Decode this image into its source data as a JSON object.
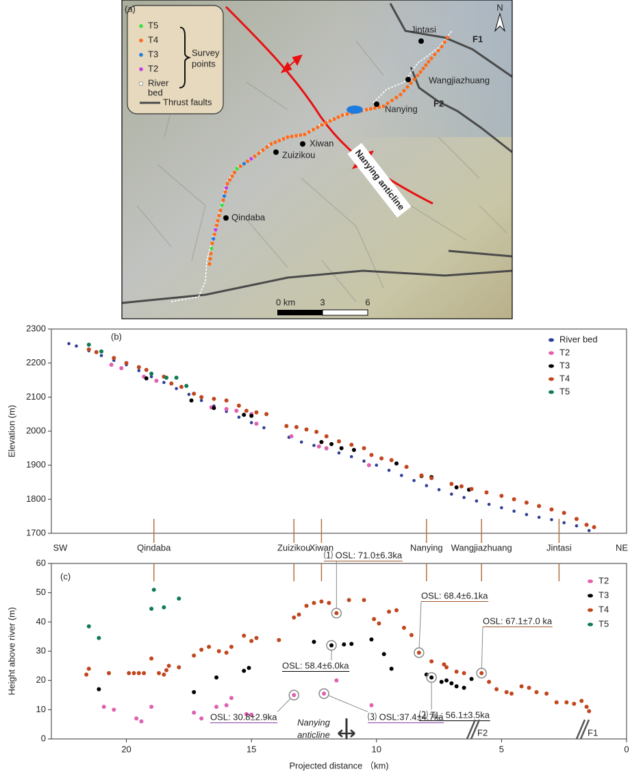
{
  "map": {
    "panel_label": "(a)",
    "legend": {
      "items": [
        "T5",
        "T4",
        "T3",
        "T2",
        [
          "River",
          "bed"
        ]
      ],
      "colors": [
        "#3ce03c",
        "#ff6a1a",
        "#1e7be0",
        "#c838e8",
        "#ffffff"
      ],
      "group_label": [
        "Survey",
        "points"
      ],
      "fault_label": "Thrust faults"
    },
    "places": [
      "Jintasi",
      "Wangjiazhuang",
      "Nanying",
      "Xiwan",
      "Zuizikou",
      "Qindaba"
    ],
    "faults": [
      "F1",
      "F2"
    ],
    "north": "N",
    "anticline": "Nanying anticline",
    "scale": [
      "0 km",
      "3",
      "6"
    ]
  },
  "chart_data": [
    {
      "type": "scatter",
      "panel_label": "(b)",
      "y_label": "Elevation (m)",
      "xlim": [
        23,
        0
      ],
      "ylim": [
        1700,
        2300
      ],
      "yticks": [
        1700,
        1800,
        1900,
        2000,
        2100,
        2200,
        2300
      ],
      "legend": "upper right",
      "ends": [
        "SW",
        "NE"
      ],
      "locations": {
        "names": [
          "Qindaba",
          "Zuizikou",
          "Xiwan",
          "Nanying",
          "Wangjiazhuang",
          "Jintasi"
        ],
        "x": [
          18.9,
          13.3,
          12.2,
          8.0,
          5.8,
          2.7
        ],
        "color": "#b5703c"
      },
      "series": [
        {
          "name": "River bed",
          "color": "#2e3e96",
          "x": [
            22.3,
            22,
            21.5,
            21,
            20.5,
            20,
            19.5,
            19,
            18.5,
            18,
            17.5,
            17,
            16.5,
            16,
            15.5,
            15,
            14.5,
            13.5,
            13,
            12.5,
            12,
            11.5,
            11,
            10.5,
            10,
            9.5,
            9,
            8.5,
            8,
            7.5,
            7,
            6.5,
            6,
            5.5,
            5,
            4.5,
            4,
            3.5,
            3,
            2.5,
            2,
            1.5
          ],
          "values": [
            2257,
            2250,
            2236,
            2222,
            2208,
            2195,
            2178,
            2160,
            2143,
            2125,
            2108,
            2090,
            2074,
            2058,
            2041,
            2025,
            2010,
            1982,
            1968,
            1958,
            1948,
            1936,
            1925,
            1912,
            1900,
            1885,
            1870,
            1855,
            1840,
            1828,
            1815,
            1805,
            1795,
            1785,
            1775,
            1765,
            1755,
            1747,
            1740,
            1731,
            1722,
            1708
          ]
        },
        {
          "name": "T2",
          "color": "#e060b0",
          "x": [
            20.6,
            20.2,
            19.3,
            18.8,
            16.6,
            16,
            15.6,
            15,
            14.8,
            13.4,
            12.3,
            12,
            10.3
          ],
          "values": [
            2195,
            2185,
            2160,
            2148,
            2070,
            2065,
            2060,
            2050,
            2022,
            1985,
            1955,
            1950,
            1900
          ]
        },
        {
          "name": "T3",
          "color": "#000000",
          "x": [
            19.2,
            17.4,
            16.5,
            15.3,
            15,
            12.2,
            11.8,
            11.4,
            10.9,
            9.2,
            8.2,
            7.8,
            6.8,
            6.3
          ],
          "values": [
            2155,
            2090,
            2068,
            2048,
            2045,
            1968,
            1962,
            1950,
            1945,
            1905,
            1868,
            1865,
            1835,
            1828
          ]
        },
        {
          "name": "T4",
          "color": "#c0461e",
          "x": [
            21.5,
            21.2,
            20.5,
            20,
            19.5,
            19.2,
            18.5,
            18.2,
            17.8,
            17.3,
            17,
            16.5,
            16,
            15.5,
            15.2,
            14.8,
            14.4,
            13.6,
            13.2,
            12.8,
            12.4,
            12,
            11.5,
            11,
            10.5,
            10.2,
            9.8,
            9.4,
            8.8,
            8.2,
            7.8,
            7,
            6.6,
            6.2,
            5.6,
            5,
            4.5,
            4,
            3.5,
            3,
            2.5,
            2,
            1.6,
            1.3
          ],
          "values": [
            2240,
            2232,
            2215,
            2200,
            2188,
            2180,
            2160,
            2140,
            2130,
            2110,
            2100,
            2095,
            2090,
            2075,
            2060,
            2055,
            2050,
            2015,
            2012,
            2005,
            1998,
            1985,
            1970,
            1960,
            1950,
            1930,
            1920,
            1915,
            1895,
            1870,
            1862,
            1845,
            1838,
            1830,
            1820,
            1810,
            1800,
            1790,
            1780,
            1770,
            1760,
            1742,
            1725,
            1718
          ]
        },
        {
          "name": "T5",
          "color": "#0f7a5a",
          "x": [
            21.5,
            21.0,
            19.0,
            18.4,
            18.0,
            17.6
          ],
          "values": [
            2254,
            2234,
            2169,
            2157,
            2157,
            2133
          ]
        }
      ]
    },
    {
      "type": "scatter",
      "panel_label": "(c)",
      "y_label": "Height above river (m)",
      "x_label": "Projected distance （km)",
      "xlim": [
        23,
        0
      ],
      "ylim": [
        0,
        60
      ],
      "xticks": [
        20,
        15,
        10,
        5,
        0
      ],
      "yticks": [
        0,
        10,
        20,
        30,
        40,
        50,
        60
      ],
      "legend": "upper right",
      "series": [
        {
          "name": "T2",
          "color": "#e060b0",
          "x": [
            20.9,
            20.5,
            19.6,
            19.4,
            19.0,
            17.3,
            17.0,
            16.4,
            16.0,
            15.8,
            15.2,
            15.0,
            13.3,
            12.1,
            11.6,
            10.2
          ],
          "values": [
            11,
            10,
            7,
            6,
            11,
            9,
            7,
            11,
            11.5,
            14,
            8.5,
            8.3,
            15,
            15.5,
            20,
            11.5
          ]
        },
        {
          "name": "T3",
          "color": "#000000",
          "x": [
            21.1,
            17.3,
            16.4,
            15.3,
            15.1,
            12.5,
            11.8,
            11.3,
            11.0,
            10.2,
            9.7,
            9.4,
            8.0,
            7.8,
            7.4,
            7.2,
            7.0,
            6.8,
            6.5,
            6.2
          ],
          "values": [
            17,
            16,
            21,
            23.3,
            24.3,
            33.2,
            32,
            32.3,
            32.5,
            34,
            29,
            24,
            22,
            21,
            19.5,
            20,
            19,
            18,
            17.5,
            20.5
          ]
        },
        {
          "name": "T4",
          "color": "#c0461e",
          "x": [
            21.6,
            21.5,
            20.7,
            19.9,
            19.7,
            19.5,
            19.3,
            19.0,
            18.7,
            18.5,
            18.4,
            18.3,
            17.9,
            17.3,
            17,
            16.7,
            16.3,
            16,
            15.8,
            15.3,
            15.0,
            14.8,
            13.9,
            13.3,
            13.1,
            12.8,
            12.5,
            12.2,
            11.9,
            11.6,
            11.1,
            10.5,
            10.1,
            9.9,
            9.5,
            9.2,
            8.9,
            8.6,
            8.3,
            7.8,
            7.3,
            7.2,
            6.8,
            6.5,
            5.8,
            5.5,
            5.2,
            4.8,
            4.6,
            4.2,
            3.9,
            3.6,
            3.2,
            2.8,
            2.4,
            2.1,
            1.8,
            1.6,
            1.5
          ],
          "values": [
            22,
            24,
            22.5,
            22.5,
            22.5,
            22.5,
            22.5,
            27.5,
            22.5,
            22,
            23.5,
            25,
            24.5,
            28.5,
            30.5,
            31.5,
            30,
            29.5,
            31.5,
            35.3,
            33.5,
            34.5,
            33.8,
            41.5,
            42.5,
            45.5,
            46.5,
            47,
            46.5,
            43,
            47.5,
            47.5,
            41,
            39.5,
            43.5,
            44,
            38,
            35.5,
            29.5,
            26.5,
            25.5,
            24.5,
            23,
            22.5,
            22.5,
            19.5,
            17,
            16,
            15.5,
            18,
            17.5,
            16,
            15.5,
            12.5,
            12.5,
            12,
            13,
            11,
            9.5
          ]
        },
        {
          "name": "T5",
          "color": "#0f7a5a",
          "x": [
            21.5,
            21.1,
            19.0,
            18.5,
            18.9,
            17.9
          ],
          "values": [
            38.5,
            34.5,
            44.5,
            45,
            51,
            48
          ]
        }
      ],
      "annotations": [
        {
          "text": "⑴ OSL: 71.0±6.3ka",
          "color": "#a0562a",
          "x": 11.6,
          "y": 43
        },
        {
          "text": "OSL: 68.4±6.1ka",
          "color": "#a0562a",
          "x": 8.3,
          "y": 29.5
        },
        {
          "text": "OSL: 67.1±7.0 ka",
          "color": "#a0562a",
          "x": 5.8,
          "y": 22.5
        },
        {
          "text": "OSL: 58.4±6.0ka",
          "color": "#000000",
          "x": 11.8,
          "y": 32
        },
        {
          "text": "⑵ TL: 56.1±3.5ka",
          "color": "#000000",
          "x": 7.8,
          "y": 21
        },
        {
          "text": "OSL: 30.8±2.9ka",
          "color": "#8a3fa8",
          "x": 13.3,
          "y": 15
        },
        {
          "text": "⑶ OSL:37.4±4.7ka",
          "color": "#8a3fa8",
          "x": 12.1,
          "y": 15.5
        }
      ],
      "anticline_label": [
        "Nanying",
        "anticline"
      ],
      "fault_labels": [
        "F2",
        "F1"
      ]
    }
  ]
}
